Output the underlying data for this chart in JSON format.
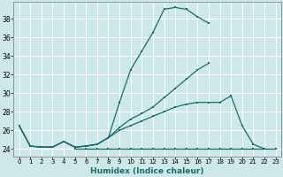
{
  "xlabel": "Humidex (Indice chaleur)",
  "background_color": "#cde8e8",
  "grid_color": "#b8d8d8",
  "line_color": "#1a6b6b",
  "xlim": [
    -0.5,
    23.5
  ],
  "ylim": [
    23.2,
    39.8
  ],
  "yticks": [
    24,
    26,
    28,
    30,
    32,
    34,
    36,
    38
  ],
  "xticks": [
    0,
    1,
    2,
    3,
    4,
    5,
    6,
    7,
    8,
    9,
    10,
    11,
    12,
    13,
    14,
    15,
    16,
    17,
    18,
    19,
    20,
    21,
    22,
    23
  ],
  "series": [
    {
      "x": [
        0,
        1,
        2,
        3,
        4,
        5,
        6,
        7,
        8,
        9,
        10,
        11,
        12,
        13,
        14,
        15,
        16,
        17
      ],
      "y": [
        26.5,
        24.3,
        24.2,
        24.2,
        24.8,
        24.2,
        24.3,
        24.5,
        25.2,
        29.0,
        32.5,
        34.5,
        36.5,
        39.0,
        39.2,
        39.0,
        38.2,
        37.5
      ]
    },
    {
      "x": [
        0,
        1,
        2,
        3,
        4,
        5,
        6,
        7,
        8,
        9,
        10,
        11,
        12,
        13,
        14,
        15,
        16,
        17
      ],
      "y": [
        26.5,
        24.3,
        24.2,
        24.2,
        24.8,
        24.2,
        24.3,
        24.5,
        25.2,
        26.3,
        27.2,
        27.8,
        28.5,
        29.5,
        30.5,
        31.5,
        32.5,
        33.2
      ]
    },
    {
      "x": [
        0,
        1,
        2,
        3,
        4,
        5,
        6,
        7,
        8,
        9,
        10,
        11,
        12,
        13,
        14,
        15,
        16,
        17,
        18,
        19,
        20,
        21,
        22
      ],
      "y": [
        26.5,
        24.3,
        24.2,
        24.2,
        24.8,
        24.2,
        24.3,
        24.5,
        25.2,
        26.0,
        26.5,
        27.0,
        27.5,
        28.0,
        28.5,
        28.8,
        29.0,
        29.0,
        29.0,
        29.7,
        26.5,
        24.5,
        24.0
      ]
    },
    {
      "x": [
        5,
        6,
        7,
        8,
        9,
        10,
        11,
        12,
        13,
        14,
        15,
        16,
        17,
        18,
        19,
        20,
        21,
        22,
        23
      ],
      "y": [
        24.0,
        24.0,
        24.0,
        24.0,
        24.0,
        24.0,
        24.0,
        24.0,
        24.0,
        24.0,
        24.0,
        24.0,
        24.0,
        24.0,
        24.0,
        24.0,
        24.0,
        24.0,
        24.0
      ]
    }
  ]
}
